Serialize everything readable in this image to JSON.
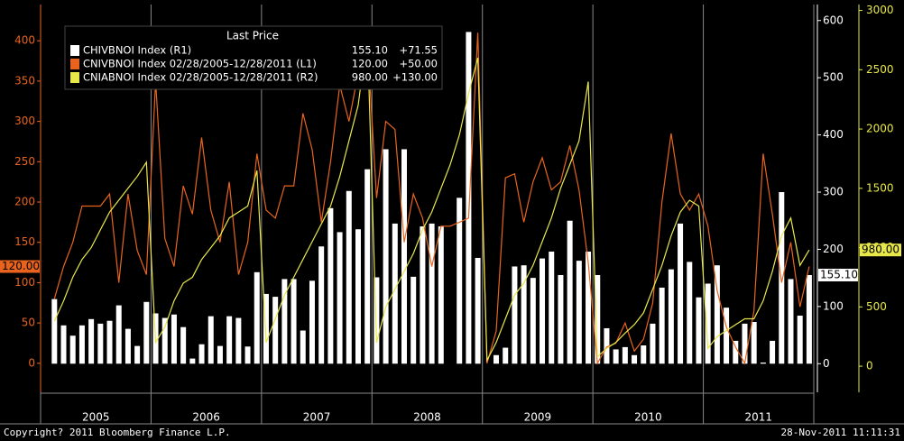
{
  "chart_data": {
    "type": "bar",
    "legend_header": "Last Price",
    "categories": [
      null,
      null,
      null,
      null,
      null,
      null,
      null,
      null,
      null,
      null,
      null,
      null,
      null,
      null,
      null,
      null,
      null,
      null,
      null,
      null,
      null,
      null,
      null,
      null,
      null,
      null,
      null,
      null,
      null,
      null,
      null,
      null,
      null,
      null,
      null,
      null,
      null,
      null,
      null,
      null,
      null,
      null,
      null,
      null,
      null,
      null,
      null,
      null,
      null,
      null,
      null,
      null,
      null,
      null,
      null,
      null,
      null,
      null,
      null,
      null,
      null,
      null,
      null,
      null,
      null,
      null,
      null,
      null,
      null,
      null,
      null,
      null,
      null,
      null,
      null,
      null,
      null,
      null,
      null,
      null,
      null,
      null,
      null
    ],
    "year_labels": [
      "2005",
      "2006",
      "2007",
      "2008",
      "2009",
      "2010",
      "2011"
    ],
    "ylim": [
      -36,
      445
    ],
    "yticks": [
      0,
      50,
      100,
      150,
      200,
      250,
      300,
      350,
      400
    ],
    "y2lim": [
      -50,
      628
    ],
    "y2ticks": [
      0,
      100,
      200,
      300,
      400,
      500,
      600
    ],
    "y3lim": [
      -220,
      3050
    ],
    "y3ticks": [
      0,
      500,
      1000,
      1500,
      2000,
      2500,
      3000
    ],
    "series": [
      {
        "name": "CHIVBNOI Index (R1)",
        "type": "bar",
        "axis": "y2",
        "color": "#ffffff",
        "last": "155.10",
        "change": "+71.55",
        "values": [
          113,
          67,
          49,
          67,
          78,
          70,
          75,
          102,
          61,
          31,
          108,
          88,
          80,
          86,
          64,
          9,
          34,
          83,
          31,
          83,
          80,
          30,
          160,
          122,
          117,
          148,
          148,
          58,
          145,
          205,
          272,
          230,
          302,
          235,
          340,
          151,
          375,
          245,
          375,
          152,
          240,
          245,
          240,
          0,
          290,
          580,
          185,
          0,
          15,
          28,
          170,
          172,
          150,
          184,
          196,
          155,
          250,
          180,
          196,
          155,
          62,
          25,
          29,
          15,
          32,
          70,
          133,
          165,
          245,
          178,
          116,
          140,
          172,
          98,
          40,
          70,
          73,
          2,
          40,
          300,
          148,
          84,
          155
        ]
      },
      {
        "name": "CNIVBNOI Index 02/28/2005-12/28/2011 (L1)",
        "type": "line",
        "axis": "y",
        "color": "#e8641e",
        "last": "120.00",
        "change": "+50.00",
        "values": [
          80,
          120,
          150,
          195,
          195,
          195,
          210,
          100,
          210,
          140,
          110,
          350,
          155,
          120,
          220,
          185,
          280,
          190,
          150,
          225,
          110,
          150,
          260,
          190,
          180,
          220,
          220,
          310,
          265,
          175,
          250,
          345,
          300,
          360,
          400,
          205,
          300,
          290,
          150,
          210,
          180,
          120,
          170,
          170,
          175,
          180,
          410,
          0,
          40,
          230,
          235,
          175,
          225,
          255,
          215,
          225,
          270,
          215,
          125,
          0,
          20,
          25,
          50,
          15,
          30,
          75,
          200,
          285,
          210,
          190,
          210,
          170,
          90,
          45,
          20,
          0,
          65,
          260,
          185,
          100,
          150,
          70,
          120
        ]
      },
      {
        "name": "CNIABNOI Index 02/28/2005-12/28/2011 (R2)",
        "type": "line",
        "axis": "y3",
        "color": "#e8e84a",
        "last": "980.00",
        "change": "+130.00",
        "values": [
          380,
          550,
          750,
          900,
          1000,
          1150,
          1300,
          1400,
          1500,
          1600,
          1720,
          200,
          330,
          550,
          700,
          750,
          900,
          1000,
          1100,
          1250,
          1300,
          1350,
          1650,
          200,
          400,
          600,
          750,
          900,
          1050,
          1200,
          1350,
          1600,
          1900,
          2200,
          2800,
          200,
          500,
          650,
          800,
          950,
          1150,
          1300,
          1500,
          1700,
          1950,
          2300,
          2600,
          50,
          200,
          400,
          600,
          700,
          850,
          1050,
          1250,
          1500,
          1700,
          1900,
          2400,
          80,
          150,
          200,
          280,
          350,
          450,
          650,
          850,
          1100,
          1300,
          1400,
          1350,
          150,
          250,
          300,
          350,
          400,
          400,
          550,
          800,
          1100,
          1250,
          850,
          980
        ]
      }
    ],
    "footer_left": "Copyright? 2011 Bloomberg Finance L.P.",
    "footer_right": "28-Nov-2011 11:11:31"
  }
}
